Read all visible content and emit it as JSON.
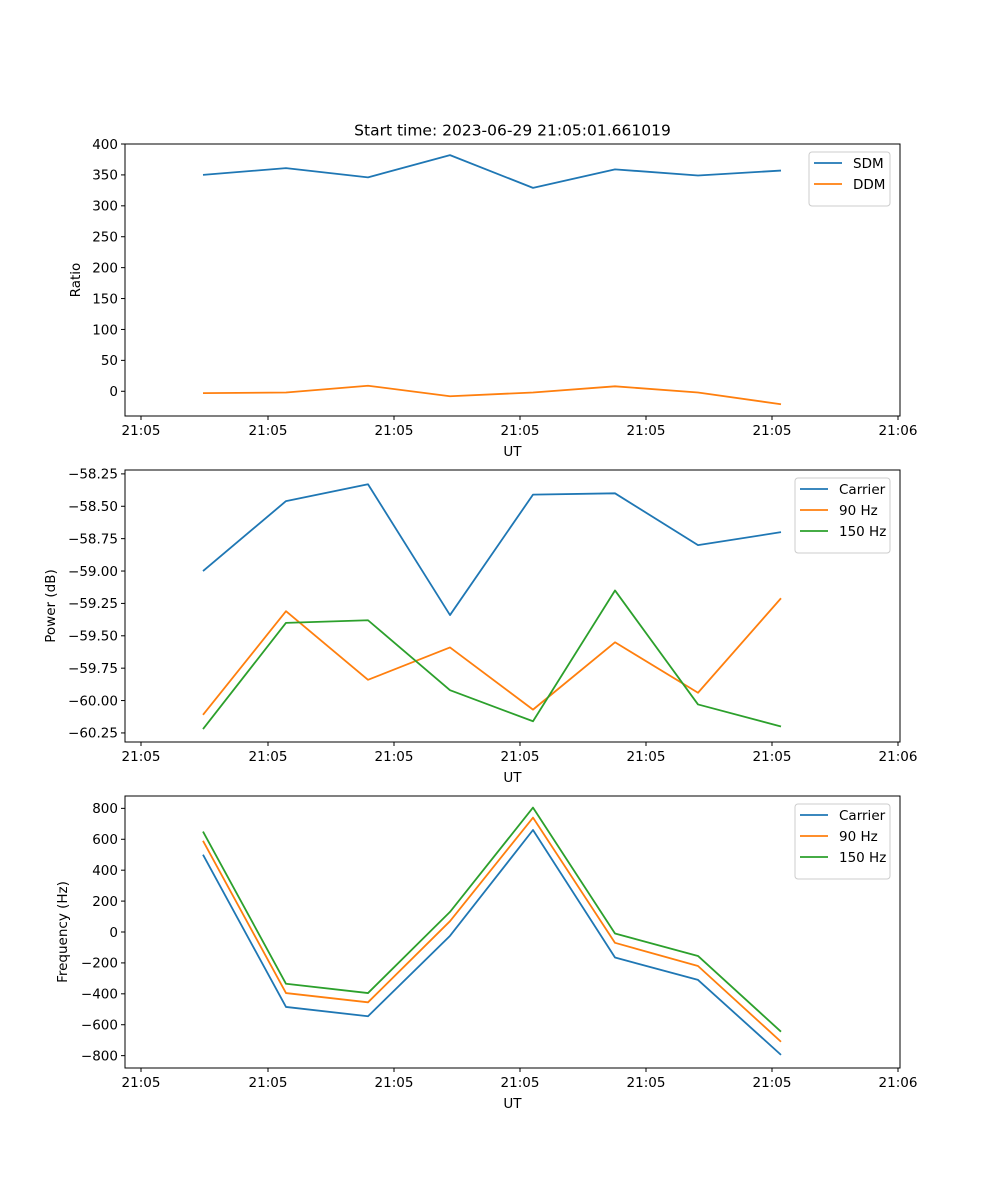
{
  "figure": {
    "title": "Start time: 2023-06-29 21:05:01.661019"
  },
  "colors": {
    "blue": "#1f77b4",
    "orange": "#ff7f0e",
    "green": "#2ca02c"
  },
  "chart_data": [
    {
      "type": "line",
      "title": "Start time: 2023-06-29 21:05:01.661019",
      "xlabel": "UT",
      "ylabel": "Ratio",
      "x_ticks": [
        "21:05",
        "21:05",
        "21:05",
        "21:05",
        "21:05",
        "21:05",
        "21:06"
      ],
      "x_points": 8,
      "ylim": [
        -40,
        400
      ],
      "y_ticks": [
        0,
        50,
        100,
        150,
        200,
        250,
        300,
        350,
        400
      ],
      "y_tick_labels": [
        "0",
        "50",
        "100",
        "150",
        "200",
        "250",
        "300",
        "350",
        "400"
      ],
      "legend_position": "top-right",
      "grid": false,
      "series": [
        {
          "name": "SDM",
          "color": "#1f77b4",
          "values": [
            350,
            361,
            346,
            382,
            329,
            359,
            349,
            357
          ]
        },
        {
          "name": "DDM",
          "color": "#ff7f0e",
          "values": [
            -3,
            -2,
            9,
            -8,
            -2,
            8,
            -2,
            -21
          ]
        }
      ]
    },
    {
      "type": "line",
      "xlabel": "UT",
      "ylabel": "Power (dB)",
      "x_ticks": [
        "21:05",
        "21:05",
        "21:05",
        "21:05",
        "21:05",
        "21:05",
        "21:06"
      ],
      "x_points": 8,
      "ylim": [
        -60.32,
        -58.22
      ],
      "y_ticks": [
        -60.25,
        -60.0,
        -59.75,
        -59.5,
        -59.25,
        -59.0,
        -58.75,
        -58.5,
        -58.25
      ],
      "y_tick_labels": [
        "−60.25",
        "−60.00",
        "−59.75",
        "−59.50",
        "−59.25",
        "−59.00",
        "−58.75",
        "−58.50",
        "−58.25"
      ],
      "legend_position": "top-right",
      "grid": false,
      "series": [
        {
          "name": "Carrier",
          "color": "#1f77b4",
          "values": [
            -59.0,
            -58.46,
            -58.33,
            -59.34,
            -58.41,
            -58.4,
            -58.8,
            -58.7
          ]
        },
        {
          "name": "90 Hz",
          "color": "#ff7f0e",
          "values": [
            -60.11,
            -59.31,
            -59.84,
            -59.59,
            -60.07,
            -59.55,
            -59.94,
            -59.21
          ]
        },
        {
          "name": "150 Hz",
          "color": "#2ca02c",
          "values": [
            -60.22,
            -59.4,
            -59.38,
            -59.92,
            -60.16,
            -59.15,
            -60.03,
            -60.2
          ]
        }
      ]
    },
    {
      "type": "line",
      "xlabel": "UT",
      "ylabel": "Frequency (Hz)",
      "x_ticks": [
        "21:05",
        "21:05",
        "21:05",
        "21:05",
        "21:05",
        "21:05",
        "21:06"
      ],
      "x_points": 8,
      "ylim": [
        -880,
        880
      ],
      "y_ticks": [
        -800,
        -600,
        -400,
        -200,
        0,
        200,
        400,
        600,
        800
      ],
      "y_tick_labels": [
        "−800",
        "−600",
        "−400",
        "−200",
        "0",
        "200",
        "400",
        "600",
        "800"
      ],
      "legend_position": "top-right",
      "grid": false,
      "series": [
        {
          "name": "Carrier",
          "color": "#1f77b4",
          "values": [
            500,
            -485,
            -545,
            -25,
            660,
            -165,
            -310,
            -795
          ]
        },
        {
          "name": "90 Hz",
          "color": "#ff7f0e",
          "values": [
            590,
            -395,
            -455,
            70,
            740,
            -70,
            -220,
            -710
          ]
        },
        {
          "name": "150 Hz",
          "color": "#2ca02c",
          "values": [
            650,
            -335,
            -395,
            130,
            805,
            -10,
            -155,
            -645
          ]
        }
      ]
    }
  ]
}
